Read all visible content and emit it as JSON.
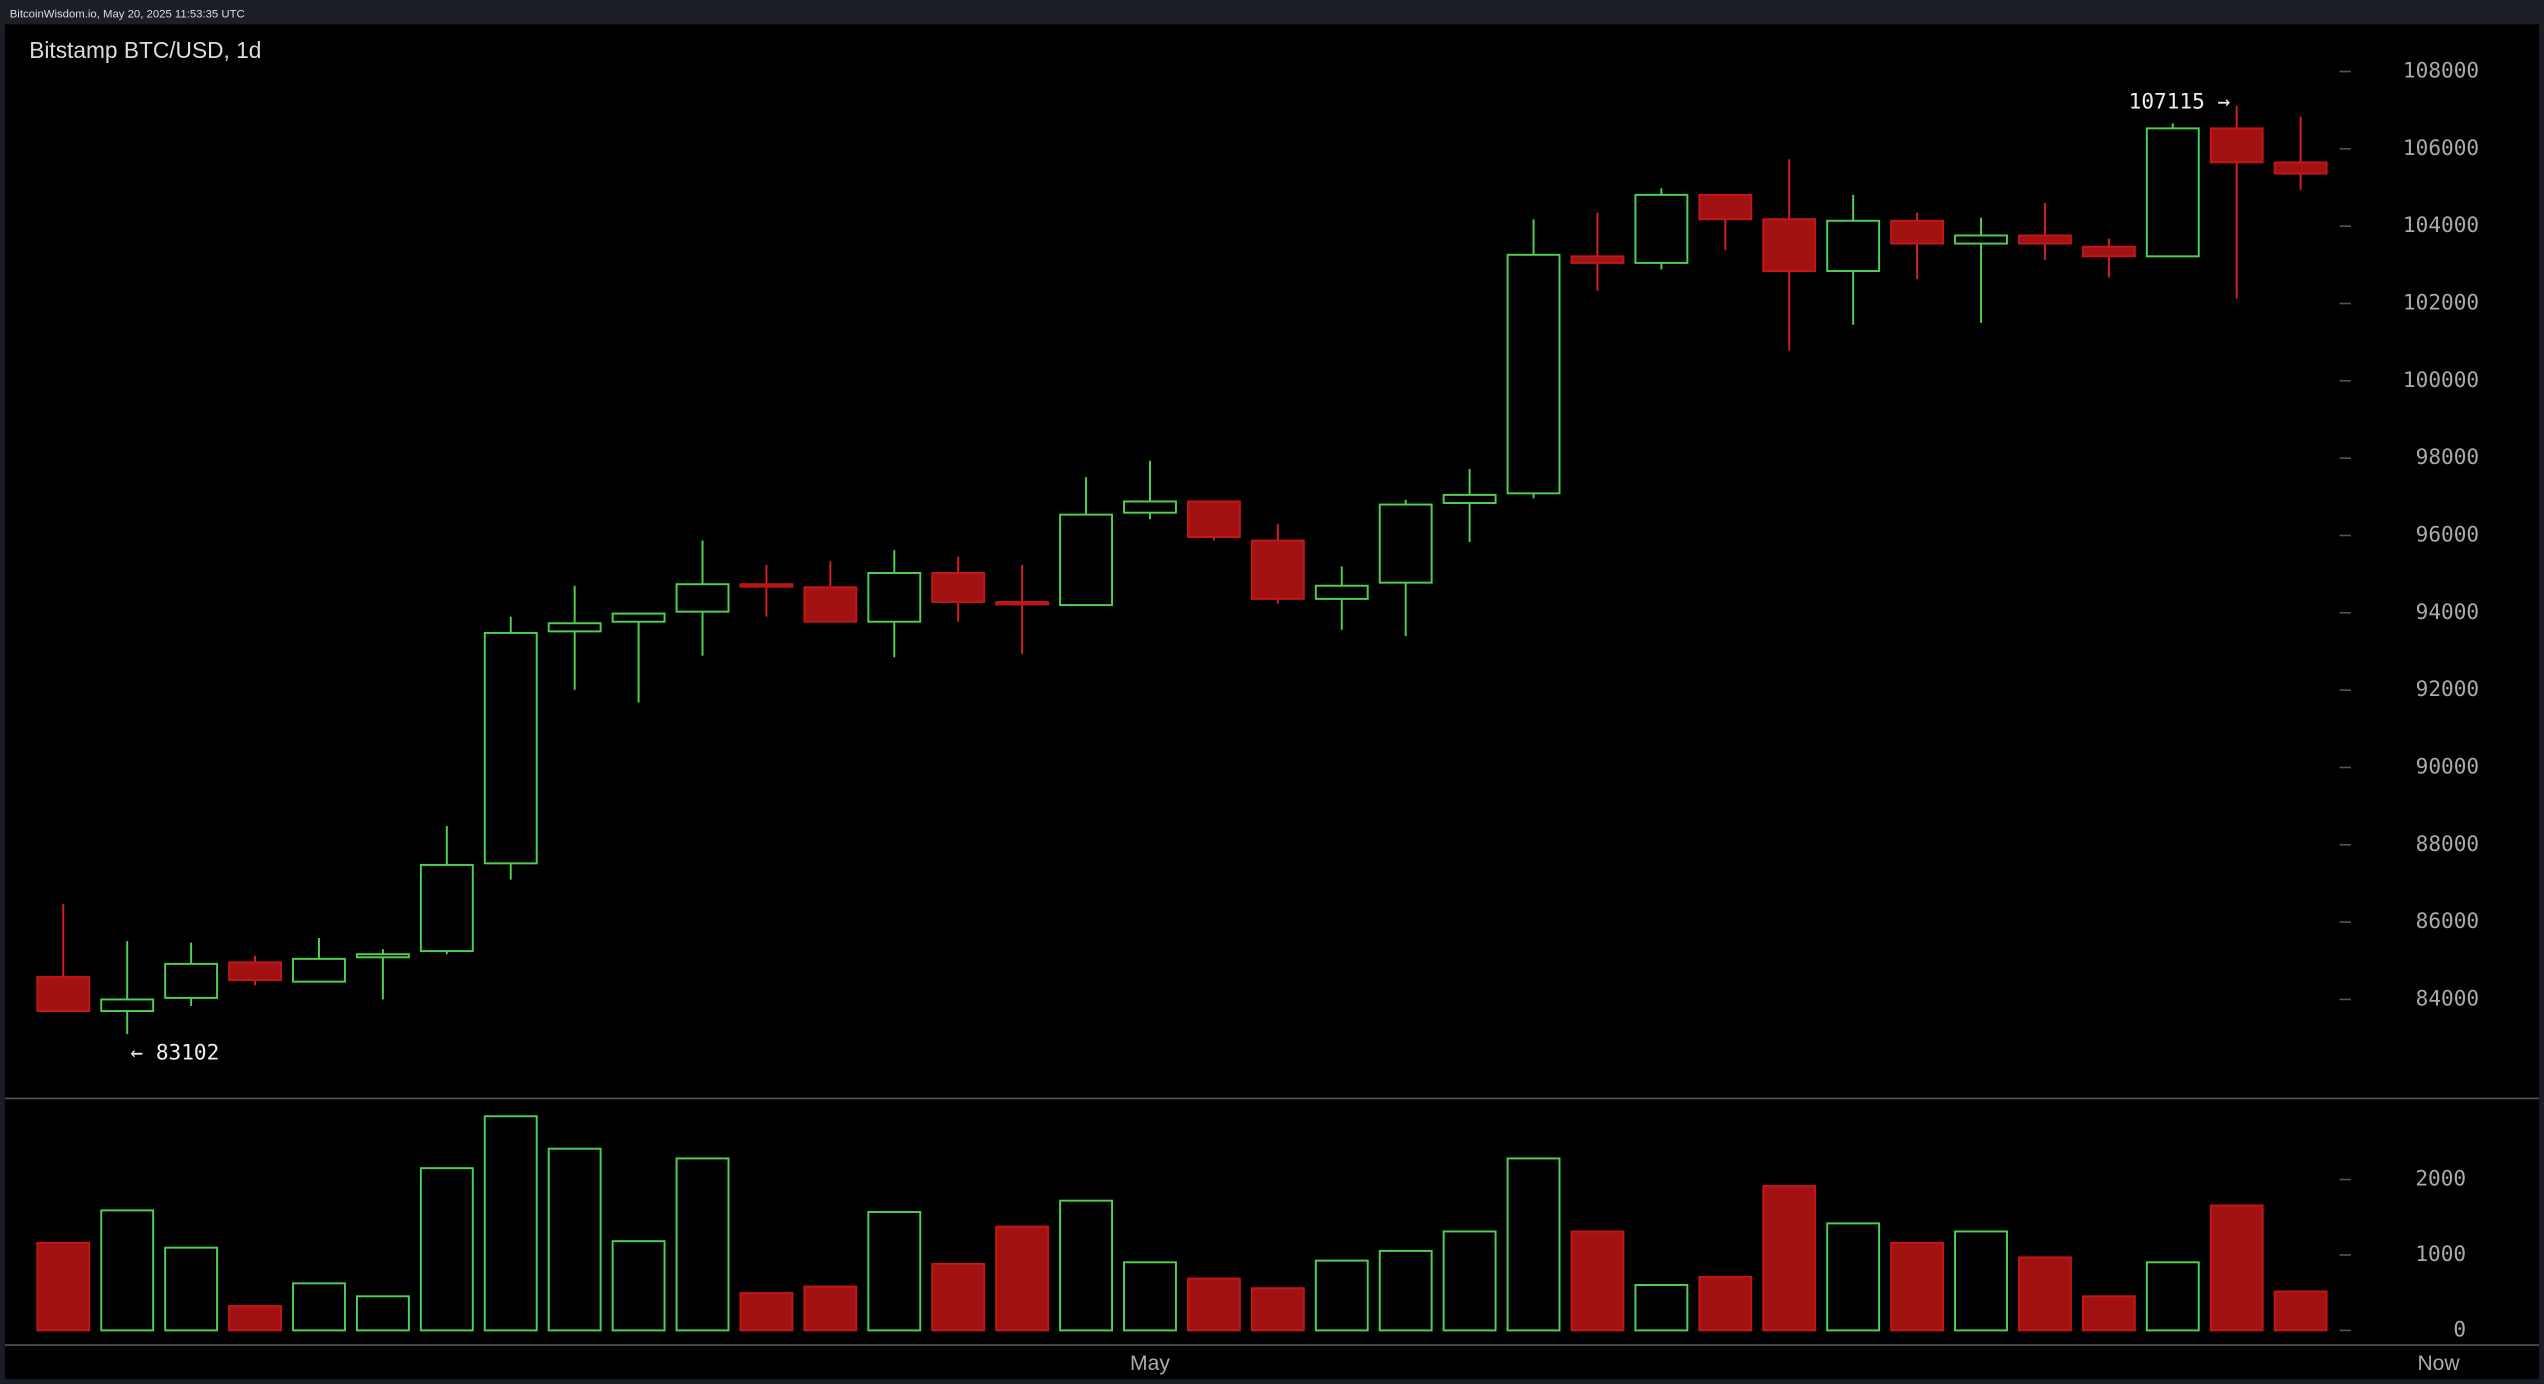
{
  "header": "BitcoinWisdom.io, May 20, 2025 11:53:35 UTC",
  "chart_data": {
    "type": "candlestick",
    "title": "Bitstamp BTC/USD, 1d",
    "categories": [
      null,
      null,
      null,
      null,
      null,
      null,
      null,
      null,
      null,
      null,
      null,
      null,
      null,
      null,
      null,
      null,
      null,
      "May",
      null,
      null,
      null,
      null,
      null,
      null,
      null,
      null,
      null,
      null,
      null,
      null,
      null,
      null,
      null,
      null,
      null,
      null
    ],
    "now_label": "Now",
    "open": [
      84580,
      83700,
      84040,
      84960,
      84460,
      85090,
      85250,
      87520,
      93520,
      93770,
      94030,
      94740,
      94660,
      93770,
      95030,
      94280,
      94200,
      96590,
      96880,
      95870,
      94360,
      94780,
      96840,
      97090,
      103220,
      103050,
      104810,
      104180,
      102840,
      104140,
      103550,
      103760,
      103470,
      103220,
      106530,
      105650
    ],
    "high": [
      86470,
      85510,
      85470,
      85130,
      85590,
      85300,
      88490,
      93900,
      94700,
      93980,
      95870,
      95240,
      95330,
      95620,
      95450,
      95240,
      97510,
      97930,
      96880,
      96290,
      95200,
      96920,
      97720,
      104180,
      104350,
      104980,
      104810,
      105730,
      104810,
      104350,
      104220,
      104600,
      103680,
      106660,
      107115,
      106830
    ],
    "low": [
      83700,
      83102,
      83830,
      84370,
      84460,
      84000,
      85170,
      87100,
      92010,
      91680,
      92890,
      93900,
      93770,
      92850,
      93770,
      92930,
      94200,
      96420,
      95870,
      94240,
      93560,
      93400,
      95830,
      96960,
      102330,
      102880,
      103380,
      100780,
      101450,
      102630,
      101500,
      103130,
      102670,
      103220,
      102130,
      104940
    ],
    "close": [
      83700,
      84000,
      84920,
      84500,
      85050,
      85170,
      87480,
      93480,
      93730,
      93980,
      94740,
      94700,
      93770,
      95030,
      94280,
      94240,
      96540,
      96880,
      95960,
      94360,
      94700,
      96800,
      97050,
      103260,
      103050,
      104810,
      104180,
      102840,
      104140,
      103550,
      103760,
      103550,
      103220,
      106530,
      105650,
      105360
    ],
    "volume": [
      1161,
      1591,
      1097,
      323,
      624,
      452,
      2151,
      2839,
      2409,
      1183,
      2280,
      495,
      581,
      1570,
      882,
      1376,
      1720,
      903,
      688,
      559,
      925,
      1054,
      1312,
      2280,
      1312,
      602,
      710,
      1914,
      1419,
      1161,
      1312,
      968,
      452,
      903,
      1656,
      516
    ],
    "up_color": "#4fd14f",
    "down_color": "#a31212",
    "ylim": [
      81440,
      109220
    ],
    "yticks": [
      84000,
      86000,
      88000,
      90000,
      92000,
      94000,
      96000,
      98000,
      100000,
      102000,
      104000,
      106000,
      108000
    ],
    "volume_ylim": [
      -194,
      3054
    ],
    "volume_ticks": [
      0,
      1000,
      2000
    ],
    "annotations": [
      {
        "text": "107115 →",
        "index": 34
      },
      {
        "text": "← 83102",
        "index": 1
      }
    ]
  }
}
